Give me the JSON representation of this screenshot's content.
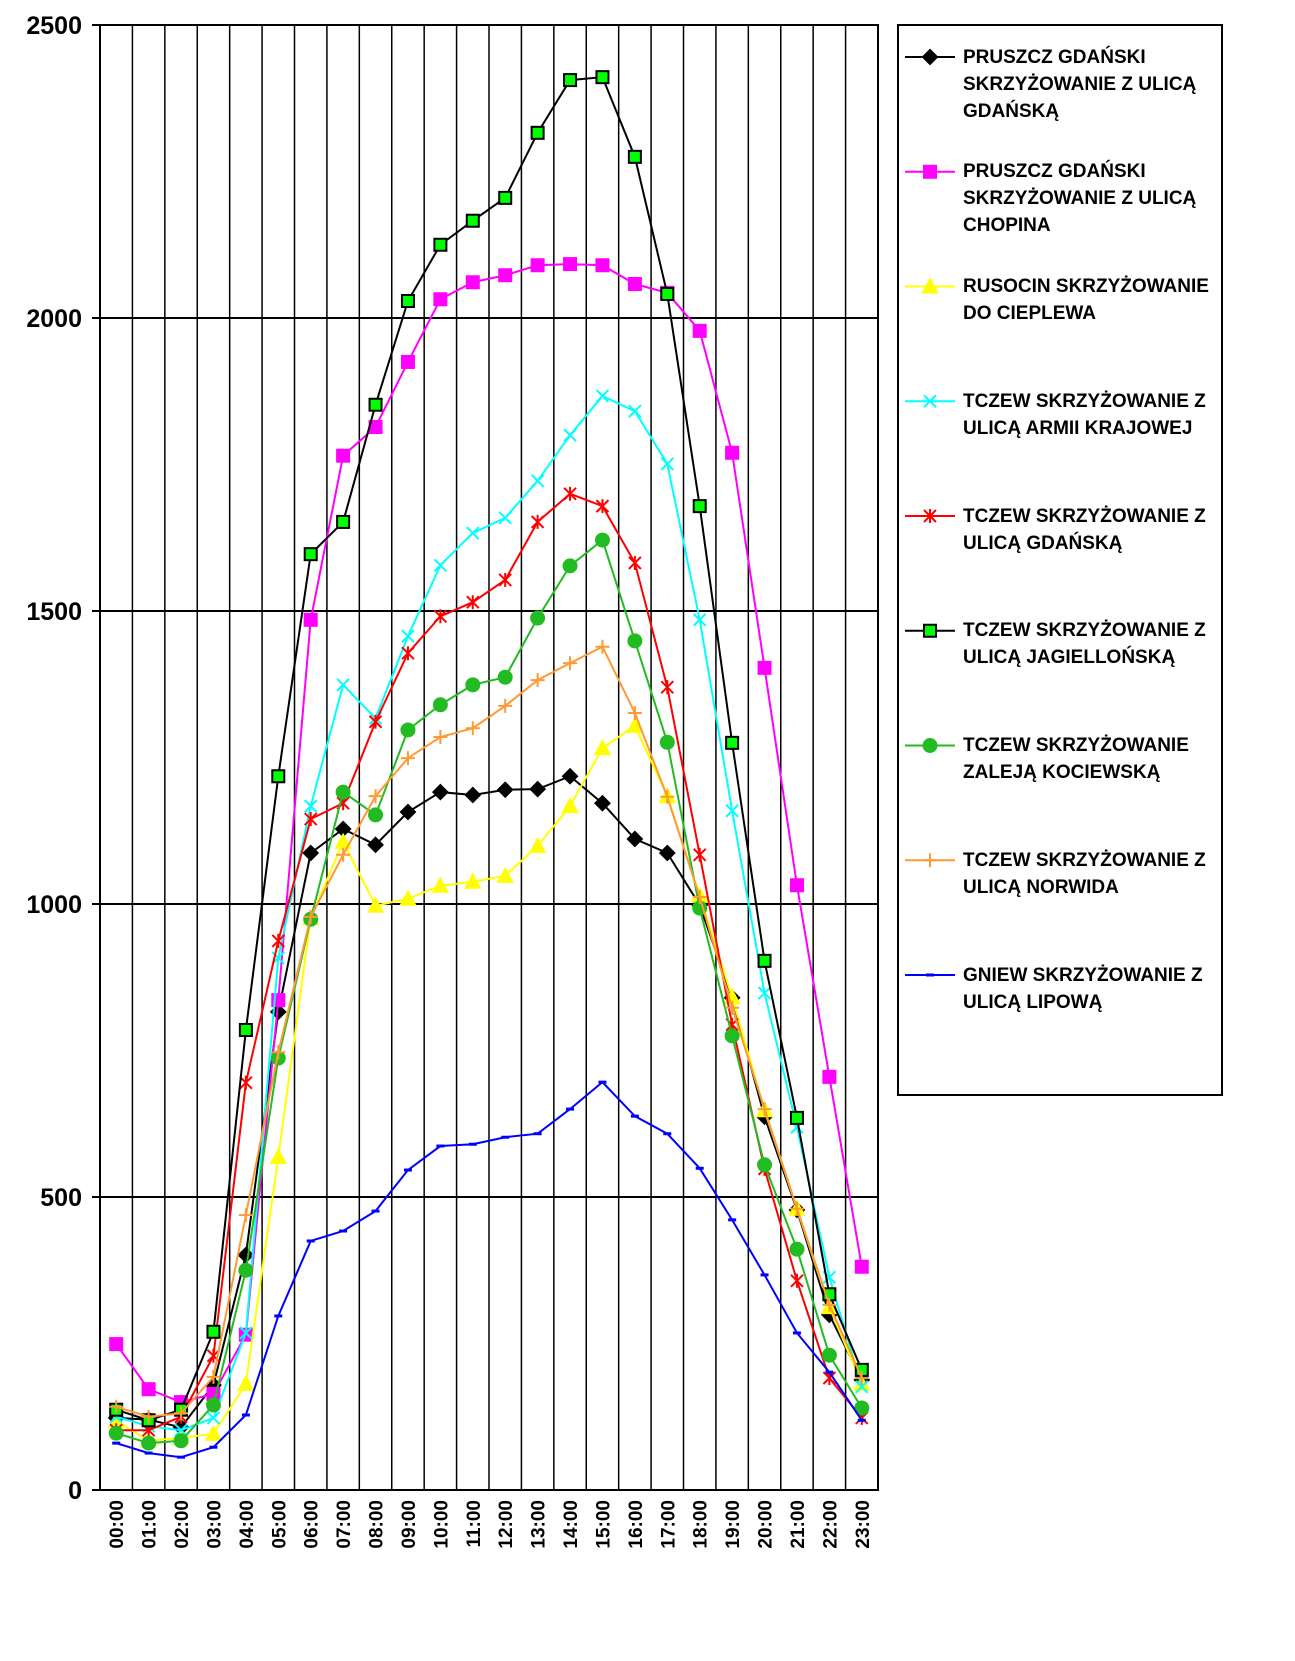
{
  "chart_data": {
    "type": "line",
    "categories": [
      "00:00",
      "01:00",
      "02:00",
      "03:00",
      "04:00",
      "05:00",
      "06:00",
      "07:00",
      "08:00",
      "09:00",
      "10:00",
      "11:00",
      "12:00",
      "13:00",
      "14:00",
      "15:00",
      "16:00",
      "17:00",
      "18:00",
      "19:00",
      "20:00",
      "21:00",
      "22:00",
      "23:00"
    ],
    "ylim": [
      0,
      2500
    ],
    "yticks": [
      0,
      500,
      1000,
      1500,
      2000,
      2500
    ],
    "grid": true,
    "series": [
      {
        "name": "PRUSZCZ GDAŃSKI SKRZYŻOWANIE Z ULICĄ GDAŃSKĄ",
        "color": "#000000",
        "marker": "diamond",
        "marker_fill": "#000000",
        "values": [
          123,
          120,
          107,
          179,
          401,
          816,
          1087,
          1128,
          1101,
          1157,
          1191,
          1186,
          1195,
          1196,
          1218,
          1172,
          1111,
          1087,
          998,
          840,
          637,
          478,
          299,
          188
        ]
      },
      {
        "name": "PRUSZCZ GDAŃSKI SKRZYŻOWANIE Z ULICĄ CHOPINA",
        "color": "#ff00ff",
        "marker": "square",
        "marker_fill": "#ff00ff",
        "values": [
          249,
          172,
          150,
          164,
          265,
          836,
          1485,
          1765,
          1814,
          1925,
          2032,
          2061,
          2073,
          2090,
          2092,
          2090,
          2058,
          2043,
          1978,
          1770,
          1403,
          1032,
          705,
          381
        ]
      },
      {
        "name": "RUSOCIN SKRZYŻOWANIE DO CIEPLEWA",
        "color": "#ffff00",
        "marker": "triangle",
        "marker_fill": "#ffff00",
        "values": [
          118,
          84,
          89,
          96,
          181,
          568,
          976,
          1106,
          997,
          1009,
          1031,
          1038,
          1048,
          1099,
          1167,
          1266,
          1304,
          1184,
          1014,
          841,
          648,
          480,
          312,
          181
        ]
      },
      {
        "name": "TCZEW SKRZYŻOWANIE Z ULICĄ ARMII KRAJOWEJ",
        "color": "#00ffff",
        "marker": "x",
        "marker_fill": "#00ffff",
        "values": [
          125,
          109,
          102,
          123,
          268,
          908,
          1167,
          1374,
          1317,
          1457,
          1578,
          1633,
          1659,
          1722,
          1800,
          1867,
          1841,
          1751,
          1485,
          1159,
          848,
          619,
          363,
          176
        ]
      },
      {
        "name": "TCZEW SKRZYŻOWANIE Z ULICĄ GDAŃSKĄ",
        "color": "#ff0000",
        "marker": "star",
        "marker_fill": "#ff0000",
        "values": [
          102,
          102,
          125,
          229,
          695,
          937,
          1145,
          1172,
          1311,
          1428,
          1491,
          1515,
          1553,
          1652,
          1700,
          1679,
          1582,
          1370,
          1084,
          794,
          548,
          357,
          191,
          123
        ]
      },
      {
        "name": "TCZEW SKRZYŻOWANIE Z ULICĄ JAGIELLOŃSKĄ",
        "color": "#000000",
        "marker": "square",
        "marker_fill": "#00ff00",
        "values": [
          137,
          119,
          137,
          270,
          785,
          1218,
          1597,
          1652,
          1852,
          2029,
          2125,
          2166,
          2205,
          2316,
          2406,
          2411,
          2275,
          2041,
          1679,
          1275,
          903,
          635,
          334,
          205
        ]
      },
      {
        "name": "TCZEW SKRZYŻOWANIE ZALEJĄ KOCIEWSKĄ",
        "color": "#22bb22",
        "marker": "circle",
        "marker_fill": "#22bb22",
        "values": [
          97,
          80,
          84,
          145,
          375,
          737,
          974,
          1191,
          1152,
          1297,
          1340,
          1374,
          1387,
          1488,
          1577,
          1621,
          1449,
          1276,
          993,
          775,
          555,
          411,
          230,
          140
        ]
      },
      {
        "name": "TCZEW SKRZYŻOWANIE Z ULICĄ NORWIDA",
        "color": "#ff9933",
        "marker": "plus",
        "marker_fill": "#ff9933",
        "values": [
          142,
          125,
          131,
          193,
          469,
          747,
          978,
          1084,
          1184,
          1249,
          1285,
          1300,
          1338,
          1382,
          1411,
          1439,
          1326,
          1183,
          1012,
          823,
          650,
          480,
          316,
          191
        ]
      },
      {
        "name": "GNIEW SKRZYŻOWANIE Z ULICĄ LIPOWĄ",
        "color": "#0000ff",
        "marker": "dash",
        "marker_fill": "#0000ff",
        "values": [
          80,
          63,
          56,
          73,
          128,
          297,
          425,
          442,
          476,
          546,
          587,
          590,
          602,
          608,
          650,
          696,
          638,
          608,
          549,
          461,
          367,
          268,
          201,
          119
        ]
      }
    ]
  }
}
